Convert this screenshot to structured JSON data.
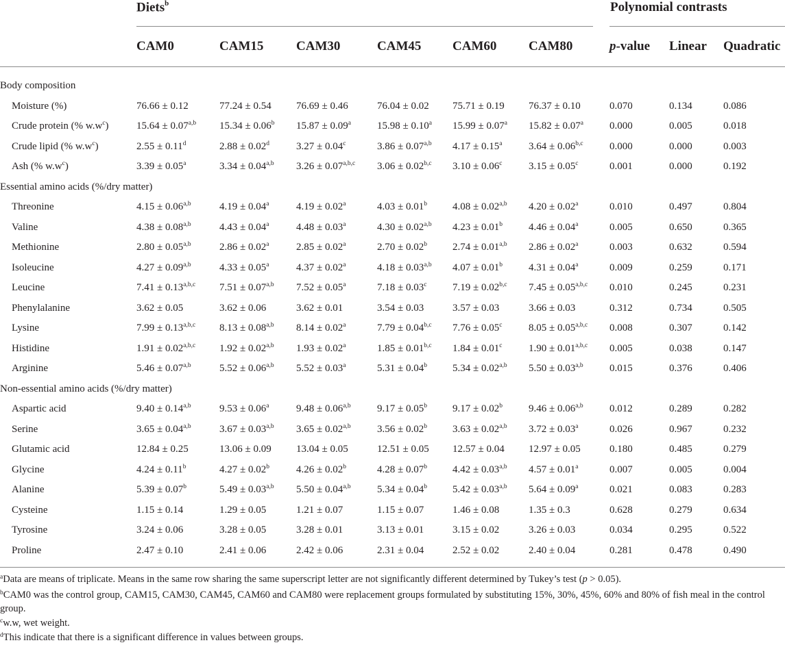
{
  "header": {
    "diets": {
      "text": "Diets",
      "sup": "b"
    },
    "polynomial": "Polynomial contrasts",
    "columns": [
      {
        "text": "CAM0"
      },
      {
        "text": "CAM15"
      },
      {
        "text": "CAM30"
      },
      {
        "text": "CAM45"
      },
      {
        "text": "CAM60"
      },
      {
        "text": "CAM80"
      },
      {
        "italic": "p",
        "text": "-value"
      },
      {
        "text": "Linear"
      },
      {
        "text": "Quadratic"
      }
    ]
  },
  "sections": [
    {
      "title": "Body composition",
      "rows": [
        {
          "label": "Moisture (%)",
          "cells": [
            [
              "76.66 ± 0.12",
              ""
            ],
            [
              "77.24 ± 0.54",
              ""
            ],
            [
              "76.69 ± 0.46",
              ""
            ],
            [
              "76.04 ± 0.02",
              ""
            ],
            [
              "75.71 ± 0.19",
              ""
            ],
            [
              "76.37 ± 0.10",
              ""
            ],
            [
              "0.070",
              ""
            ],
            [
              "0.134",
              ""
            ],
            [
              "0.086",
              ""
            ]
          ]
        },
        {
          "label": "Crude protein (% w.w",
          "label_sup": "c",
          "label_tail": ")",
          "cells": [
            [
              "15.64 ± 0.07",
              "a,b"
            ],
            [
              "15.34 ± 0.06",
              "b"
            ],
            [
              "15.87 ± 0.09",
              "a"
            ],
            [
              "15.98 ± 0.10",
              "a"
            ],
            [
              "15.99 ± 0.07",
              "a"
            ],
            [
              "15.82 ± 0.07",
              "a"
            ],
            [
              "0.000",
              ""
            ],
            [
              "0.005",
              ""
            ],
            [
              "0.018",
              ""
            ]
          ]
        },
        {
          "label": "Crude lipid (% w.w",
          "label_sup": "c",
          "label_tail": ")",
          "cells": [
            [
              "2.55 ± 0.11",
              "d"
            ],
            [
              "2.88 ± 0.02",
              "d"
            ],
            [
              "3.27 ± 0.04",
              "c"
            ],
            [
              "3.86 ± 0.07",
              "a,b"
            ],
            [
              "4.17 ± 0.15",
              "a"
            ],
            [
              "3.64 ± 0.06",
              "b,c"
            ],
            [
              "0.000",
              ""
            ],
            [
              "0.000",
              ""
            ],
            [
              "0.003",
              ""
            ]
          ]
        },
        {
          "label": "Ash (% w.w",
          "label_sup": "c",
          "label_tail": ")",
          "cells": [
            [
              "3.39 ± 0.05",
              "a"
            ],
            [
              "3.34 ± 0.04",
              "a,b"
            ],
            [
              "3.26 ± 0.07",
              "a,b,c"
            ],
            [
              "3.06 ± 0.02",
              "b,c"
            ],
            [
              "3.10 ± 0.06",
              "c"
            ],
            [
              "3.15 ± 0.05",
              "c"
            ],
            [
              "0.001",
              ""
            ],
            [
              "0.000",
              ""
            ],
            [
              "0.192",
              ""
            ]
          ]
        }
      ]
    },
    {
      "title": "Essential amino acids (%/dry matter)",
      "rows": [
        {
          "label": "Threonine",
          "cells": [
            [
              "4.15 ± 0.06",
              "a,b"
            ],
            [
              "4.19 ± 0.04",
              "a"
            ],
            [
              "4.19 ± 0.02",
              "a"
            ],
            [
              "4.03 ± 0.01",
              "b"
            ],
            [
              "4.08 ± 0.02",
              "a,b"
            ],
            [
              "4.20 ± 0.02",
              "a"
            ],
            [
              "0.010",
              ""
            ],
            [
              "0.497",
              ""
            ],
            [
              "0.804",
              ""
            ]
          ]
        },
        {
          "label": "Valine",
          "cells": [
            [
              "4.38 ± 0.08",
              "a,b"
            ],
            [
              "4.43 ± 0.04",
              "a"
            ],
            [
              "4.48 ± 0.03",
              "a"
            ],
            [
              "4.30 ± 0.02",
              "a,b"
            ],
            [
              "4.23 ± 0.01",
              "b"
            ],
            [
              "4.46 ± 0.04",
              "a"
            ],
            [
              "0.005",
              ""
            ],
            [
              "0.650",
              ""
            ],
            [
              "0.365",
              ""
            ]
          ]
        },
        {
          "label": "Methionine",
          "cells": [
            [
              "2.80 ± 0.05",
              "a,b"
            ],
            [
              "2.86 ± 0.02",
              "a"
            ],
            [
              "2.85 ± 0.02",
              "a"
            ],
            [
              "2.70 ± 0.02",
              "b"
            ],
            [
              "2.74 ± 0.01",
              "a,b"
            ],
            [
              "2.86 ± 0.02",
              "a"
            ],
            [
              "0.003",
              ""
            ],
            [
              "0.632",
              ""
            ],
            [
              "0.594",
              ""
            ]
          ]
        },
        {
          "label": "Isoleucine",
          "cells": [
            [
              "4.27 ± 0.09",
              "a,b"
            ],
            [
              "4.33 ± 0.05",
              "a"
            ],
            [
              "4.37 ± 0.02",
              "a"
            ],
            [
              "4.18 ± 0.03",
              "a,b"
            ],
            [
              "4.07 ± 0.01",
              "b"
            ],
            [
              "4.31 ± 0.04",
              "a"
            ],
            [
              "0.009",
              ""
            ],
            [
              "0.259",
              ""
            ],
            [
              "0.171",
              ""
            ]
          ]
        },
        {
          "label": "Leucine",
          "cells": [
            [
              "7.41 ± 0.13",
              "a,b,c"
            ],
            [
              "7.51 ± 0.07",
              "a,b"
            ],
            [
              "7.52 ± 0.05",
              "a"
            ],
            [
              "7.18 ± 0.03",
              "c"
            ],
            [
              "7.19 ± 0.02",
              "b,c"
            ],
            [
              "7.45 ± 0.05",
              "a,b,c"
            ],
            [
              "0.010",
              ""
            ],
            [
              "0.245",
              ""
            ],
            [
              "0.231",
              ""
            ]
          ]
        },
        {
          "label": "Phenylalanine",
          "cells": [
            [
              "3.62 ± 0.05",
              ""
            ],
            [
              "3.62 ± 0.06",
              ""
            ],
            [
              "3.62 ± 0.01",
              ""
            ],
            [
              "3.54 ± 0.03",
              ""
            ],
            [
              "3.57 ± 0.03",
              ""
            ],
            [
              "3.66 ± 0.03",
              ""
            ],
            [
              "0.312",
              ""
            ],
            [
              "0.734",
              ""
            ],
            [
              "0.505",
              ""
            ]
          ]
        },
        {
          "label": "Lysine",
          "cells": [
            [
              "7.99 ± 0.13",
              "a,b,c"
            ],
            [
              "8.13 ± 0.08",
              "a,b"
            ],
            [
              "8.14 ± 0.02",
              "a"
            ],
            [
              "7.79 ± 0.04",
              "b,c"
            ],
            [
              "7.76 ± 0.05",
              "c"
            ],
            [
              "8.05 ± 0.05",
              "a,b,c"
            ],
            [
              "0.008",
              ""
            ],
            [
              "0.307",
              ""
            ],
            [
              "0.142",
              ""
            ]
          ]
        },
        {
          "label": "Histidine",
          "cells": [
            [
              "1.91 ± 0.02",
              "a,b,c"
            ],
            [
              "1.92 ± 0.02",
              "a,b"
            ],
            [
              "1.93 ± 0.02",
              "a"
            ],
            [
              "1.85 ± 0.01",
              "b,c"
            ],
            [
              "1.84 ± 0.01",
              "c"
            ],
            [
              "1.90 ± 0.01",
              "a,b,c"
            ],
            [
              "0.005",
              ""
            ],
            [
              "0.038",
              ""
            ],
            [
              "0.147",
              ""
            ]
          ]
        },
        {
          "label": "Arginine",
          "cells": [
            [
              "5.46 ± 0.07",
              "a,b"
            ],
            [
              "5.52 ± 0.06",
              "a,b"
            ],
            [
              "5.52 ± 0.03",
              "a"
            ],
            [
              "5.31 ± 0.04",
              "b"
            ],
            [
              "5.34 ± 0.02",
              "a,b"
            ],
            [
              "5.50 ± 0.03",
              "a,b"
            ],
            [
              "0.015",
              ""
            ],
            [
              "0.376",
              ""
            ],
            [
              "0.406",
              ""
            ]
          ]
        }
      ]
    },
    {
      "title": "Non-essential amino acids (%/dry matter)",
      "rows": [
        {
          "label": "Aspartic acid",
          "cells": [
            [
              "9.40 ± 0.14",
              "a,b"
            ],
            [
              "9.53 ± 0.06",
              "a"
            ],
            [
              "9.48 ± 0.06",
              "a,b"
            ],
            [
              "9.17 ± 0.05",
              "b"
            ],
            [
              "9.17 ± 0.02",
              "b"
            ],
            [
              "9.46 ± 0.06",
              "a,b"
            ],
            [
              "0.012",
              ""
            ],
            [
              "0.289",
              ""
            ],
            [
              "0.282",
              ""
            ]
          ]
        },
        {
          "label": "Serine",
          "cells": [
            [
              "3.65 ± 0.04",
              "a,b"
            ],
            [
              "3.67 ± 0.03",
              "a,b"
            ],
            [
              "3.65 ± 0.02",
              "a,b"
            ],
            [
              "3.56 ± 0.02",
              "b"
            ],
            [
              "3.63 ± 0.02",
              "a,b"
            ],
            [
              "3.72 ± 0.03",
              "a"
            ],
            [
              "0.026",
              ""
            ],
            [
              "0.967",
              ""
            ],
            [
              "0.232",
              ""
            ]
          ]
        },
        {
          "label": "Glutamic acid",
          "cells": [
            [
              "12.84 ± 0.25",
              ""
            ],
            [
              "13.06 ± 0.09",
              ""
            ],
            [
              "13.04 ± 0.05",
              ""
            ],
            [
              "12.51 ± 0.05",
              ""
            ],
            [
              "12.57 ± 0.04",
              ""
            ],
            [
              "12.97 ± 0.05",
              ""
            ],
            [
              "0.180",
              ""
            ],
            [
              "0.485",
              ""
            ],
            [
              "0.279",
              ""
            ]
          ]
        },
        {
          "label": "Glycine",
          "cells": [
            [
              "4.24 ± 0.11",
              "b"
            ],
            [
              "4.27 ± 0.02",
              "b"
            ],
            [
              "4.26 ± 0.02",
              "b"
            ],
            [
              "4.28 ± 0.07",
              "b"
            ],
            [
              "4.42 ± 0.03",
              "a,b"
            ],
            [
              "4.57 ± 0.01",
              "a"
            ],
            [
              "0.007",
              ""
            ],
            [
              "0.005",
              ""
            ],
            [
              "0.004",
              ""
            ]
          ]
        },
        {
          "label": "Alanine",
          "cells": [
            [
              "5.39 ± 0.07",
              "b"
            ],
            [
              "5.49 ± 0.03",
              "a,b"
            ],
            [
              "5.50 ± 0.04",
              "a,b"
            ],
            [
              "5.34 ± 0.04",
              "b"
            ],
            [
              "5.42 ± 0.03",
              "a,b"
            ],
            [
              "5.64 ± 0.09",
              "a"
            ],
            [
              "0.021",
              ""
            ],
            [
              "0.083",
              ""
            ],
            [
              "0.283",
              ""
            ]
          ]
        },
        {
          "label": "Cysteine",
          "cells": [
            [
              "1.15 ± 0.14",
              ""
            ],
            [
              "1.29 ± 0.05",
              ""
            ],
            [
              "1.21 ± 0.07",
              ""
            ],
            [
              "1.15 ± 0.07",
              ""
            ],
            [
              "1.46 ± 0.08",
              ""
            ],
            [
              "1.35 ± 0.3",
              ""
            ],
            [
              "0.628",
              ""
            ],
            [
              "0.279",
              ""
            ],
            [
              "0.634",
              ""
            ]
          ]
        },
        {
          "label": "Tyrosine",
          "cells": [
            [
              "3.24 ± 0.06",
              ""
            ],
            [
              "3.28 ± 0.05",
              ""
            ],
            [
              "3.28 ± 0.01",
              ""
            ],
            [
              "3.13 ± 0.01",
              ""
            ],
            [
              "3.15 ± 0.02",
              ""
            ],
            [
              "3.26 ± 0.03",
              ""
            ],
            [
              "0.034",
              ""
            ],
            [
              "0.295",
              ""
            ],
            [
              "0.522",
              ""
            ]
          ]
        },
        {
          "label": "Proline",
          "cells": [
            [
              "2.47 ± 0.10",
              ""
            ],
            [
              "2.41 ± 0.06",
              ""
            ],
            [
              "2.42 ± 0.06",
              ""
            ],
            [
              "2.31 ± 0.04",
              ""
            ],
            [
              "2.52 ± 0.02",
              ""
            ],
            [
              "2.40 ± 0.04",
              ""
            ],
            [
              "0.281",
              ""
            ],
            [
              "0.478",
              ""
            ],
            [
              "0.490",
              ""
            ]
          ]
        }
      ]
    }
  ],
  "footnotes": [
    {
      "sup": "a",
      "segments": [
        {
          "t": "Data are means of triplicate. Means in the same row sharing the same superscript letter are not significantly different determined by Tukey’s test ("
        },
        {
          "t": "p",
          "i": true
        },
        {
          "t": " > 0.05)."
        }
      ]
    },
    {
      "sup": "b",
      "segments": [
        {
          "t": "CAM0 was the control group, CAM15, CAM30, CAM45, CAM60 and CAM80 were replacement groups formulated by substituting 15%, 30%, 45%, 60% and 80% of fish meal in the control group."
        }
      ]
    },
    {
      "sup": "c",
      "segments": [
        {
          "t": "w.w, wet weight."
        }
      ]
    },
    {
      "sup": "d",
      "segments": [
        {
          "t": "This indicate that there is a significant difference in values between groups."
        }
      ]
    }
  ]
}
